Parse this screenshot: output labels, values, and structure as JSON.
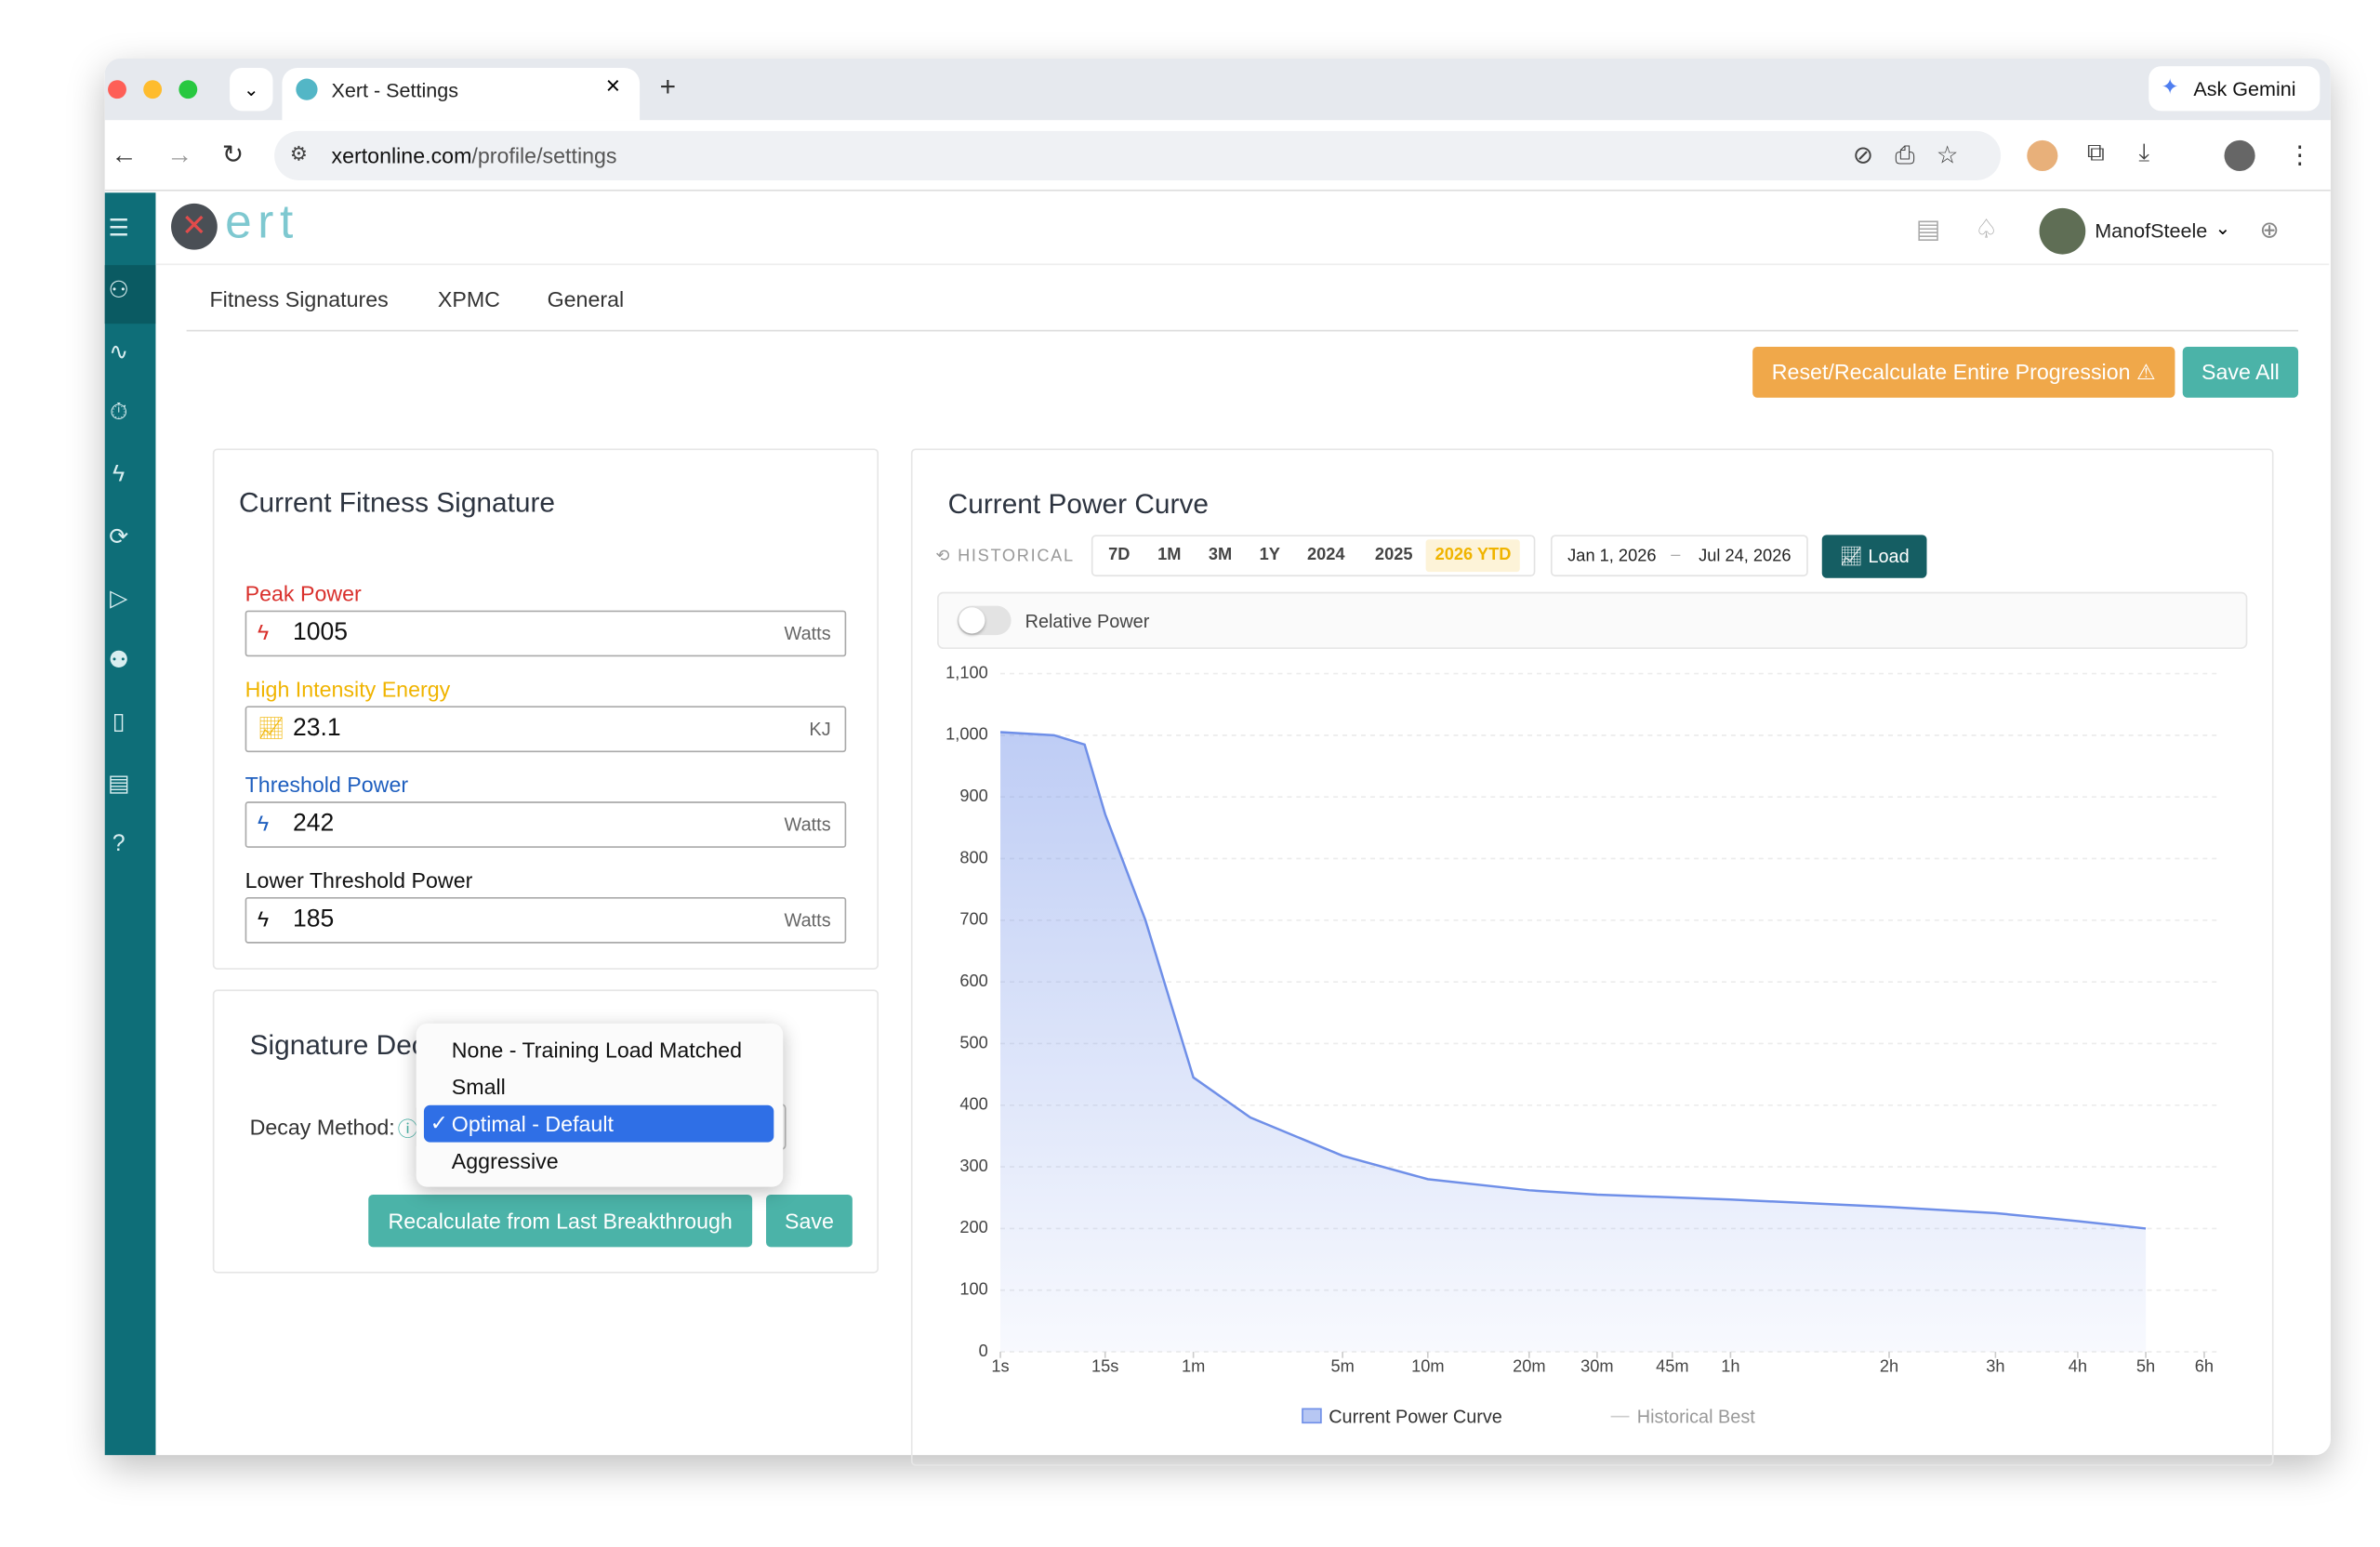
{
  "browser": {
    "tab_title": "Xert - Settings",
    "url_domain": "xertonline.com",
    "url_path": "/profile/settings",
    "ask_gemini": "Ask Gemini"
  },
  "app": {
    "logo_text": "ert",
    "user": "ManofSteele"
  },
  "tabs": [
    "Fitness Signatures",
    "XPMC",
    "General"
  ],
  "actions": {
    "reset": "Reset/Recalculate Entire Progression",
    "save_all": "Save All"
  },
  "fitness_signature": {
    "title": "Current Fitness Signature",
    "fields": [
      {
        "label": "Peak Power",
        "value": 1005,
        "unit": "Watts",
        "color": "#d9302c"
      },
      {
        "label": "High Intensity Energy",
        "value": 23.1,
        "unit": "KJ",
        "color": "#f0b400"
      },
      {
        "label": "Threshold Power",
        "value": 242,
        "unit": "Watts",
        "color": "#1f5fbf"
      },
      {
        "label": "Lower Threshold Power",
        "value": 185,
        "unit": "Watts",
        "color": "#111111"
      }
    ]
  },
  "signature_decay": {
    "title": "Signature Decay",
    "decay_label": "Decay Method:",
    "options": [
      "None - Training Load Matched",
      "Small",
      "Optimal - Default",
      "Aggressive"
    ],
    "selected": 2,
    "recalc": "Recalculate from Last Breakthrough",
    "save": "Save"
  },
  "power_curve": {
    "title": "Current Power Curve",
    "historical": "HISTORICAL",
    "ranges": [
      "7D",
      "1M",
      "3M",
      "1Y",
      "2024",
      "2025",
      "2026 YTD"
    ],
    "active_range": 6,
    "date_from": "Jan 1, 2026",
    "date_to": "Jul 24, 2026",
    "load": "Load",
    "relative_power": "Relative Power"
  },
  "chart_data": {
    "type": "area",
    "x": [
      1,
      5,
      10,
      15,
      30,
      60,
      120,
      300,
      600,
      1200,
      1800,
      3600,
      7200,
      10800,
      14400,
      18000
    ],
    "series": [
      {
        "name": "Current Power Curve",
        "color": "#6f8fe8",
        "values": [
          1005,
          1000,
          985,
          872,
          700,
          445,
          380,
          318,
          280,
          262,
          255,
          247,
          235,
          225,
          212,
          200
        ]
      },
      {
        "name": "Historical Best",
        "color": "#cccccc",
        "values": [
          null,
          null,
          null,
          null,
          null,
          null,
          null,
          null,
          null,
          null,
          null,
          null,
          null,
          null,
          null,
          null
        ]
      }
    ],
    "xlim": [
      1,
      21600
    ],
    "xticks": [
      {
        "value": 1,
        "label": "1s"
      },
      {
        "value": 15,
        "label": "15s"
      },
      {
        "value": 60,
        "label": "1m"
      },
      {
        "value": 300,
        "label": "5m"
      },
      {
        "value": 600,
        "label": "10m"
      },
      {
        "value": 1200,
        "label": "20m"
      },
      {
        "value": 1800,
        "label": "30m"
      },
      {
        "value": 2700,
        "label": "45m"
      },
      {
        "value": 3600,
        "label": "1h"
      },
      {
        "value": 7200,
        "label": "2h"
      },
      {
        "value": 10800,
        "label": "3h"
      },
      {
        "value": 14400,
        "label": "4h"
      },
      {
        "value": 18000,
        "label": "5h"
      },
      {
        "value": 21600,
        "label": "6h"
      }
    ],
    "ylim": [
      0,
      1100
    ],
    "yticks": [
      0,
      100,
      200,
      300,
      400,
      500,
      600,
      700,
      800,
      900,
      {
        "value": 1000,
        "label": "1,000"
      },
      {
        "value": 1100,
        "label": "1,100"
      }
    ],
    "grid": true
  }
}
